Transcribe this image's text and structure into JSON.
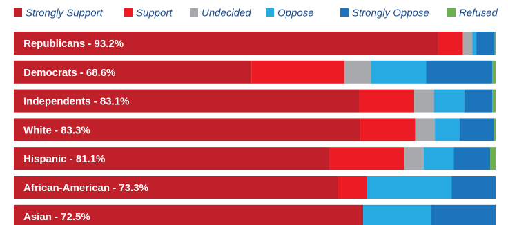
{
  "chart_data": {
    "type": "bar",
    "orientation": "horizontal",
    "stacked": true,
    "legend_position": "top",
    "grid": false,
    "colors": {
      "Strongly Support": "#c0202a",
      "Support": "#ed1c24",
      "Undecided": "#a7a9ac",
      "Oppose": "#27aae1",
      "Strongly Oppose": "#1c75bc",
      "Refused": "#6ab04c"
    },
    "categories": [
      "Republicans  - 93.2%",
      "Democrats  - 68.6%",
      "Independents - 83.1%",
      "White - 83.3%",
      "Hispanic - 81.1%",
      "African-American - 73.3%",
      "Asian - 72.5%"
    ],
    "series": [
      {
        "name": "Strongly Support",
        "values": [
          88.1,
          49.3,
          71.7,
          71.8,
          65.6,
          67.3,
          72.5
        ]
      },
      {
        "name": "Support",
        "values": [
          5.1,
          19.3,
          11.4,
          11.5,
          15.5,
          6.0,
          0.0
        ]
      },
      {
        "name": "Undecided",
        "values": [
          2.0,
          5.5,
          4.1,
          4.1,
          4.0,
          0.0,
          0.0
        ]
      },
      {
        "name": "Oppose",
        "values": [
          0.8,
          11.5,
          6.3,
          5.1,
          6.2,
          17.6,
          14.1
        ]
      },
      {
        "name": "Strongly Oppose",
        "values": [
          3.8,
          13.7,
          5.8,
          7.2,
          7.6,
          9.1,
          13.4
        ]
      },
      {
        "name": "Refused",
        "values": [
          0.2,
          0.7,
          0.7,
          0.3,
          1.1,
          0.0,
          0.0
        ]
      }
    ],
    "xlim": [
      0,
      100
    ]
  }
}
